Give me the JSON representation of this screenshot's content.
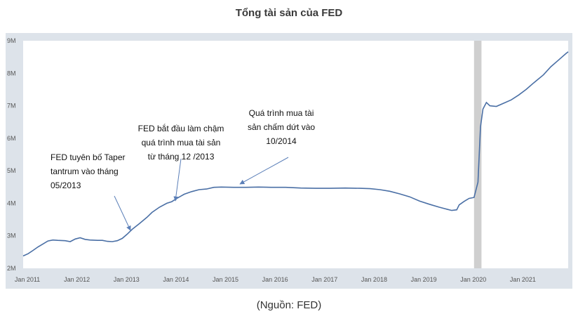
{
  "chart_data": {
    "type": "line",
    "title": "Tổng tài sản của FED",
    "source": "(Nguồn: FED)",
    "xlabel": "",
    "ylabel": "",
    "ylim": [
      2,
      9
    ],
    "y_ticks": [
      "2M",
      "3M",
      "4M",
      "5M",
      "6M",
      "7M",
      "8M",
      "9M"
    ],
    "x_ticks": [
      "Jan 2011",
      "Jan 2012",
      "Jan 2013",
      "Jan 2014",
      "Jan 2015",
      "Jan 2016",
      "Jan 2017",
      "Jan 2018",
      "Jan 2019",
      "Jan 2020",
      "Jan 2021"
    ],
    "grid": false,
    "colors": {
      "line": "#4a6fa5",
      "plot_bg": "#ffffff",
      "frame": "#dde3ea",
      "shade": "#cfcfcf",
      "arrow": "#5b7fb8"
    },
    "recession_shade": {
      "from": 2020.1,
      "to": 2020.25
    },
    "series": [
      {
        "values": [
          [
            2011.0,
            2.38
          ],
          [
            2011.1,
            2.45
          ],
          [
            2011.2,
            2.55
          ],
          [
            2011.3,
            2.66
          ],
          [
            2011.4,
            2.75
          ],
          [
            2011.5,
            2.84
          ],
          [
            2011.6,
            2.87
          ],
          [
            2011.7,
            2.86
          ],
          [
            2011.85,
            2.85
          ],
          [
            2011.95,
            2.82
          ],
          [
            2012.05,
            2.9
          ],
          [
            2012.15,
            2.94
          ],
          [
            2012.25,
            2.89
          ],
          [
            2012.35,
            2.87
          ],
          [
            2012.5,
            2.86
          ],
          [
            2012.6,
            2.86
          ],
          [
            2012.7,
            2.83
          ],
          [
            2012.8,
            2.82
          ],
          [
            2012.9,
            2.85
          ],
          [
            2013.0,
            2.92
          ],
          [
            2013.1,
            3.05
          ],
          [
            2013.2,
            3.2
          ],
          [
            2013.35,
            3.38
          ],
          [
            2013.5,
            3.57
          ],
          [
            2013.6,
            3.72
          ],
          [
            2013.75,
            3.88
          ],
          [
            2013.9,
            4.0
          ],
          [
            2014.0,
            4.05
          ],
          [
            2014.1,
            4.15
          ],
          [
            2014.25,
            4.28
          ],
          [
            2014.4,
            4.36
          ],
          [
            2014.55,
            4.42
          ],
          [
            2014.7,
            4.44
          ],
          [
            2014.85,
            4.49
          ],
          [
            2015.0,
            4.5
          ],
          [
            2015.25,
            4.49
          ],
          [
            2015.5,
            4.49
          ],
          [
            2015.75,
            4.5
          ],
          [
            2016.0,
            4.49
          ],
          [
            2016.3,
            4.49
          ],
          [
            2016.6,
            4.47
          ],
          [
            2016.9,
            4.46
          ],
          [
            2017.2,
            4.46
          ],
          [
            2017.5,
            4.47
          ],
          [
            2017.8,
            4.46
          ],
          [
            2018.0,
            4.45
          ],
          [
            2018.2,
            4.42
          ],
          [
            2018.4,
            4.37
          ],
          [
            2018.6,
            4.29
          ],
          [
            2018.8,
            4.2
          ],
          [
            2019.0,
            4.07
          ],
          [
            2019.2,
            3.97
          ],
          [
            2019.4,
            3.88
          ],
          [
            2019.55,
            3.82
          ],
          [
            2019.65,
            3.78
          ],
          [
            2019.75,
            3.8
          ],
          [
            2019.8,
            3.95
          ],
          [
            2019.9,
            4.06
          ],
          [
            2020.0,
            4.15
          ],
          [
            2020.1,
            4.18
          ],
          [
            2020.18,
            4.65
          ],
          [
            2020.23,
            6.35
          ],
          [
            2020.28,
            6.9
          ],
          [
            2020.35,
            7.1
          ],
          [
            2020.42,
            7.0
          ],
          [
            2020.55,
            6.98
          ],
          [
            2020.7,
            7.08
          ],
          [
            2020.85,
            7.18
          ],
          [
            2021.0,
            7.33
          ],
          [
            2021.15,
            7.5
          ],
          [
            2021.3,
            7.7
          ],
          [
            2021.5,
            7.95
          ],
          [
            2021.65,
            8.2
          ],
          [
            2021.8,
            8.4
          ],
          [
            2021.95,
            8.6
          ],
          [
            2022.0,
            8.66
          ]
        ]
      }
    ],
    "annotations": [
      {
        "lines": [
          "FED tuyên bố Taper",
          "tantrum vào tháng",
          "05/2013"
        ]
      },
      {
        "lines": [
          "FED bắt đầu làm chậm",
          "quá trình mua tài sản",
          "từ tháng 12 /2013"
        ]
      },
      {
        "lines": [
          "Quá trình mua tài",
          "sản chấm dứt vào",
          "10/2014"
        ]
      }
    ]
  }
}
